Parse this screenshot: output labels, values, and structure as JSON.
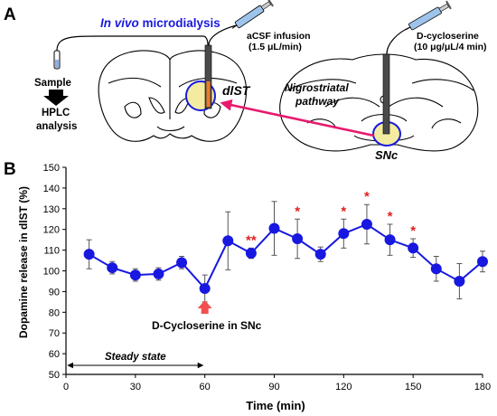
{
  "panel_a": {
    "label": "A",
    "microdialysis_title_italic": "In vivo",
    "microdialysis_title_rest": " microdialysis",
    "sample_label": "Sample",
    "hplc_line1": "HPLC",
    "hplc_line2": "analysis",
    "acsf_line1": "aCSF infusion",
    "acsf_line2": "(1.5 μL/min)",
    "dcs_line1": "D-cycloserine",
    "dcs_line2": "(10 μg/μL/4 min)",
    "dlst_label": "dlST",
    "pathway_line1": "Nigrostriatal",
    "pathway_line2": "pathway",
    "snc_label": "SNc",
    "colors": {
      "title_blue": "#1a1adc",
      "pathway_magenta": "#e8196e",
      "region_highlight": "#f3eca0",
      "probe_orange": "#f07a2a"
    },
    "icons": [
      "syringe-icon",
      "sample-vial-icon",
      "down-arrow-icon",
      "probe-icon"
    ]
  },
  "panel_b": {
    "label": "B",
    "annotation": "D-Cycloserine in SNc",
    "steady_state": "Steady state",
    "colors": {
      "series": "#1818e0",
      "significance": "#e02020",
      "arrow": "#f25050"
    }
  },
  "chart_data": {
    "type": "line",
    "xlabel": "Time (min)",
    "ylabel": "Dopamine release in dlST (%)",
    "xlim": [
      0,
      180
    ],
    "ylim": [
      50,
      150
    ],
    "xticks": [
      0,
      30,
      60,
      90,
      120,
      150,
      180
    ],
    "yticks": [
      50,
      60,
      70,
      80,
      90,
      100,
      110,
      120,
      130,
      140,
      150
    ],
    "grid": false,
    "series": [
      {
        "x": [
          10,
          20,
          30,
          40,
          50,
          60,
          70,
          80,
          90,
          100,
          110,
          120,
          130,
          140,
          150,
          160,
          170,
          180
        ],
        "y": [
          108,
          101.5,
          98,
          98.5,
          104,
          91.5,
          114.5,
          108.5,
          120.5,
          115.5,
          108,
          118,
          122.5,
          115,
          111,
          101,
          95,
          104.5
        ],
        "err": [
          7,
          3,
          3,
          3,
          3,
          6.5,
          14,
          2.5,
          13,
          9.5,
          3.5,
          7,
          9.5,
          7.5,
          4.5,
          6,
          8.5,
          5
        ]
      }
    ],
    "significance": [
      {
        "x": 80,
        "label": "**"
      },
      {
        "x": 100,
        "label": "*"
      },
      {
        "x": 120,
        "label": "*"
      },
      {
        "x": 130,
        "label": "*"
      },
      {
        "x": 140,
        "label": "*"
      },
      {
        "x": 150,
        "label": "*"
      }
    ],
    "annotation_x": 60,
    "steady_state_range": [
      0,
      60
    ]
  }
}
